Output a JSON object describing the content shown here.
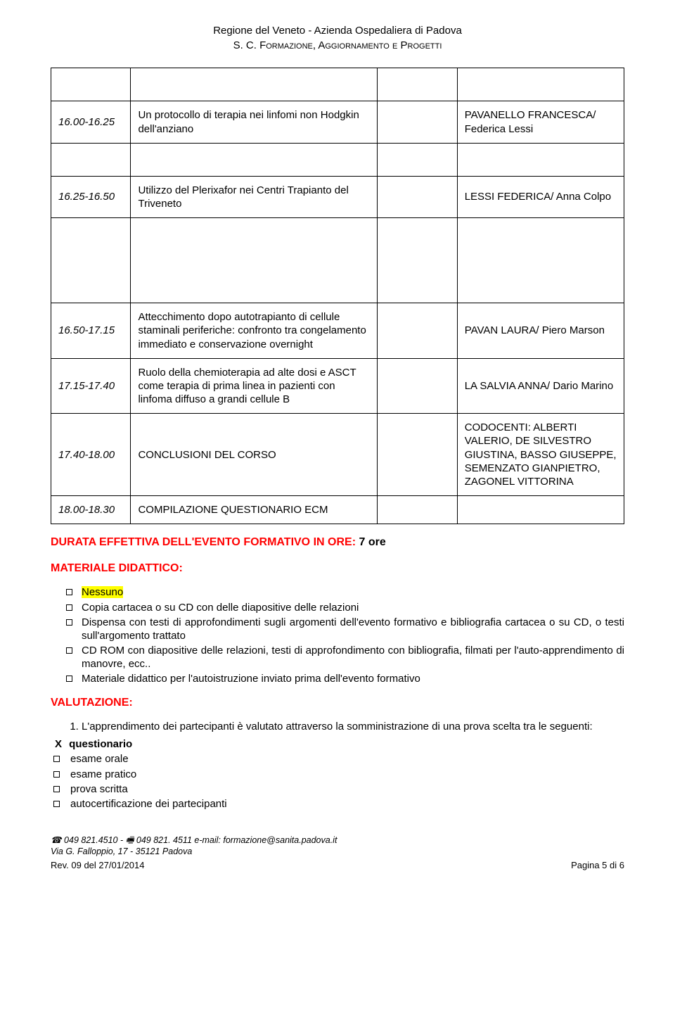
{
  "header": {
    "line1": "Regione del Veneto - Azienda Ospedaliera di Padova",
    "line2": "S. C. Formazione, Aggiornamento e Progetti"
  },
  "colors": {
    "accent": "#ff0000",
    "highlight": "#ffff00",
    "text": "#000000",
    "border": "#000000",
    "background": "#ffffff"
  },
  "schedule": [
    {
      "time": "16.00-16.25",
      "topic": "Un protocollo di terapia nei linfomi non Hodgkin dell'anziano",
      "speaker": "PAVANELLO FRANCESCA/ Federica Lessi"
    },
    {
      "time": "16.25-16.50",
      "topic": "Utilizzo del Plerixafor nei Centri Trapianto del Triveneto",
      "speaker": "LESSI FEDERICA/ Anna Colpo"
    },
    {
      "time": "16.50-17.15",
      "topic": "Attecchimento dopo autotrapianto di cellule staminali periferiche: confronto tra congelamento immediato e conservazione overnight",
      "speaker": "PAVAN LAURA/ Piero Marson"
    },
    {
      "time": "17.15-17.40",
      "topic": "Ruolo della chemioterapia ad alte dosi e ASCT come terapia di prima linea in pazienti con linfoma diffuso a grandi cellule B",
      "speaker": "LA SALVIA ANNA/ Dario Marino"
    },
    {
      "time": "17.40-18.00",
      "topic": "CONCLUSIONI DEL CORSO",
      "speaker": "CODOCENTI: ALBERTI VALERIO, DE SILVESTRO GIUSTINA, BASSO GIUSEPPE, SEMENZATO GIANPIETRO, ZAGONEL VITTORINA"
    },
    {
      "time": "18.00-18.30",
      "topic": "COMPILAZIONE QUESTIONARIO ECM",
      "speaker": ""
    }
  ],
  "duration": {
    "label": "DURATA EFFETTIVA DELL'EVENTO FORMATIVO IN ORE:",
    "value": "7 ore"
  },
  "materiale": {
    "title": "MATERIALE DIDATTICO:",
    "items": [
      "Nessuno",
      "Copia cartacea o su CD con delle diapositive delle relazioni",
      "Dispensa con testi di approfondimenti sugli argomenti dell'evento formativo e bibliografia cartacea o su CD, o testi sull'argomento trattato",
      "CD ROM con diapositive delle relazioni, testi di approfondimento con bibliografia, filmati per l'auto-apprendimento di manovre, ecc..",
      "Materiale didattico per l'autoistruzione inviato prima dell'evento formativo"
    ]
  },
  "valutazione": {
    "title": "VALUTAZIONE:",
    "intro": "L'apprendimento dei partecipanti è valutato attraverso la somministrazione di una prova scelta tra le seguenti:",
    "x_item": "questionario",
    "items": [
      "esame orale",
      "esame pratico",
      "prova scritta",
      "autocertificazione dei partecipanti"
    ]
  },
  "footer": {
    "contact": "☎ 049 821.4510  -  🖷 049 821. 4511  e-mail: formazione@sanita.padova.it",
    "address": "Via G. Falloppio, 17  - 35121 Padova",
    "rev": "Rev. 09 del 27/01/2014",
    "page": "Pagina 5 di 6"
  }
}
